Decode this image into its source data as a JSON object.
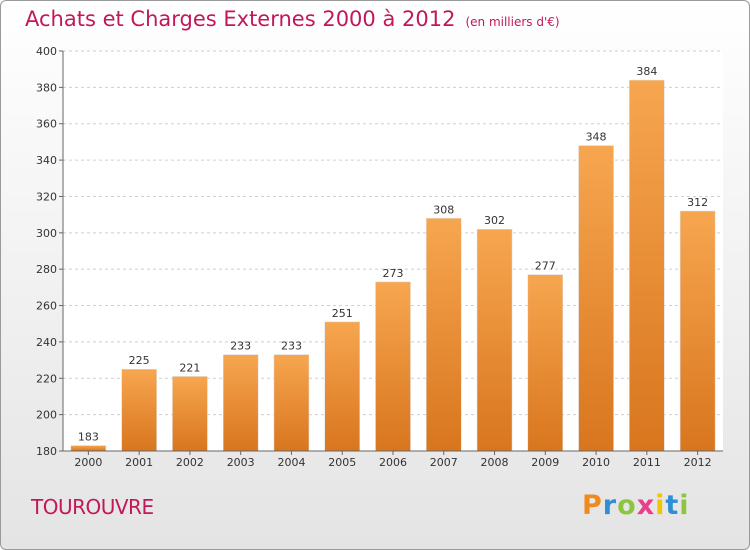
{
  "header": {
    "title": "Achats et Charges Externes 2000 à 2012",
    "unit": "(en milliers d'€)"
  },
  "footer": {
    "commune": "TOUROUVRE",
    "logo_letters": [
      "P",
      "r",
      "o",
      "x",
      "i",
      "t",
      "i"
    ],
    "logo_colors": [
      "#f08a1e",
      "#2e8fd4",
      "#8cc63f",
      "#e83e8c",
      "#f5c400",
      "#2e8fd4",
      "#8cc63f"
    ]
  },
  "chart_data": {
    "type": "bar",
    "title": "Achats et Charges Externes 2000 à 2012",
    "categories": [
      "2000",
      "2001",
      "2002",
      "2003",
      "2004",
      "2005",
      "2006",
      "2007",
      "2008",
      "2009",
      "2010",
      "2011",
      "2012"
    ],
    "values": [
      183,
      225,
      221,
      233,
      233,
      251,
      273,
      308,
      302,
      277,
      348,
      384,
      312
    ],
    "ylim": [
      180,
      400
    ],
    "yticks": [
      180,
      200,
      220,
      240,
      260,
      280,
      300,
      320,
      340,
      360,
      380,
      400
    ],
    "grid": true,
    "bar_color_top": "#f7a650",
    "bar_color_bottom": "#d8761e"
  }
}
